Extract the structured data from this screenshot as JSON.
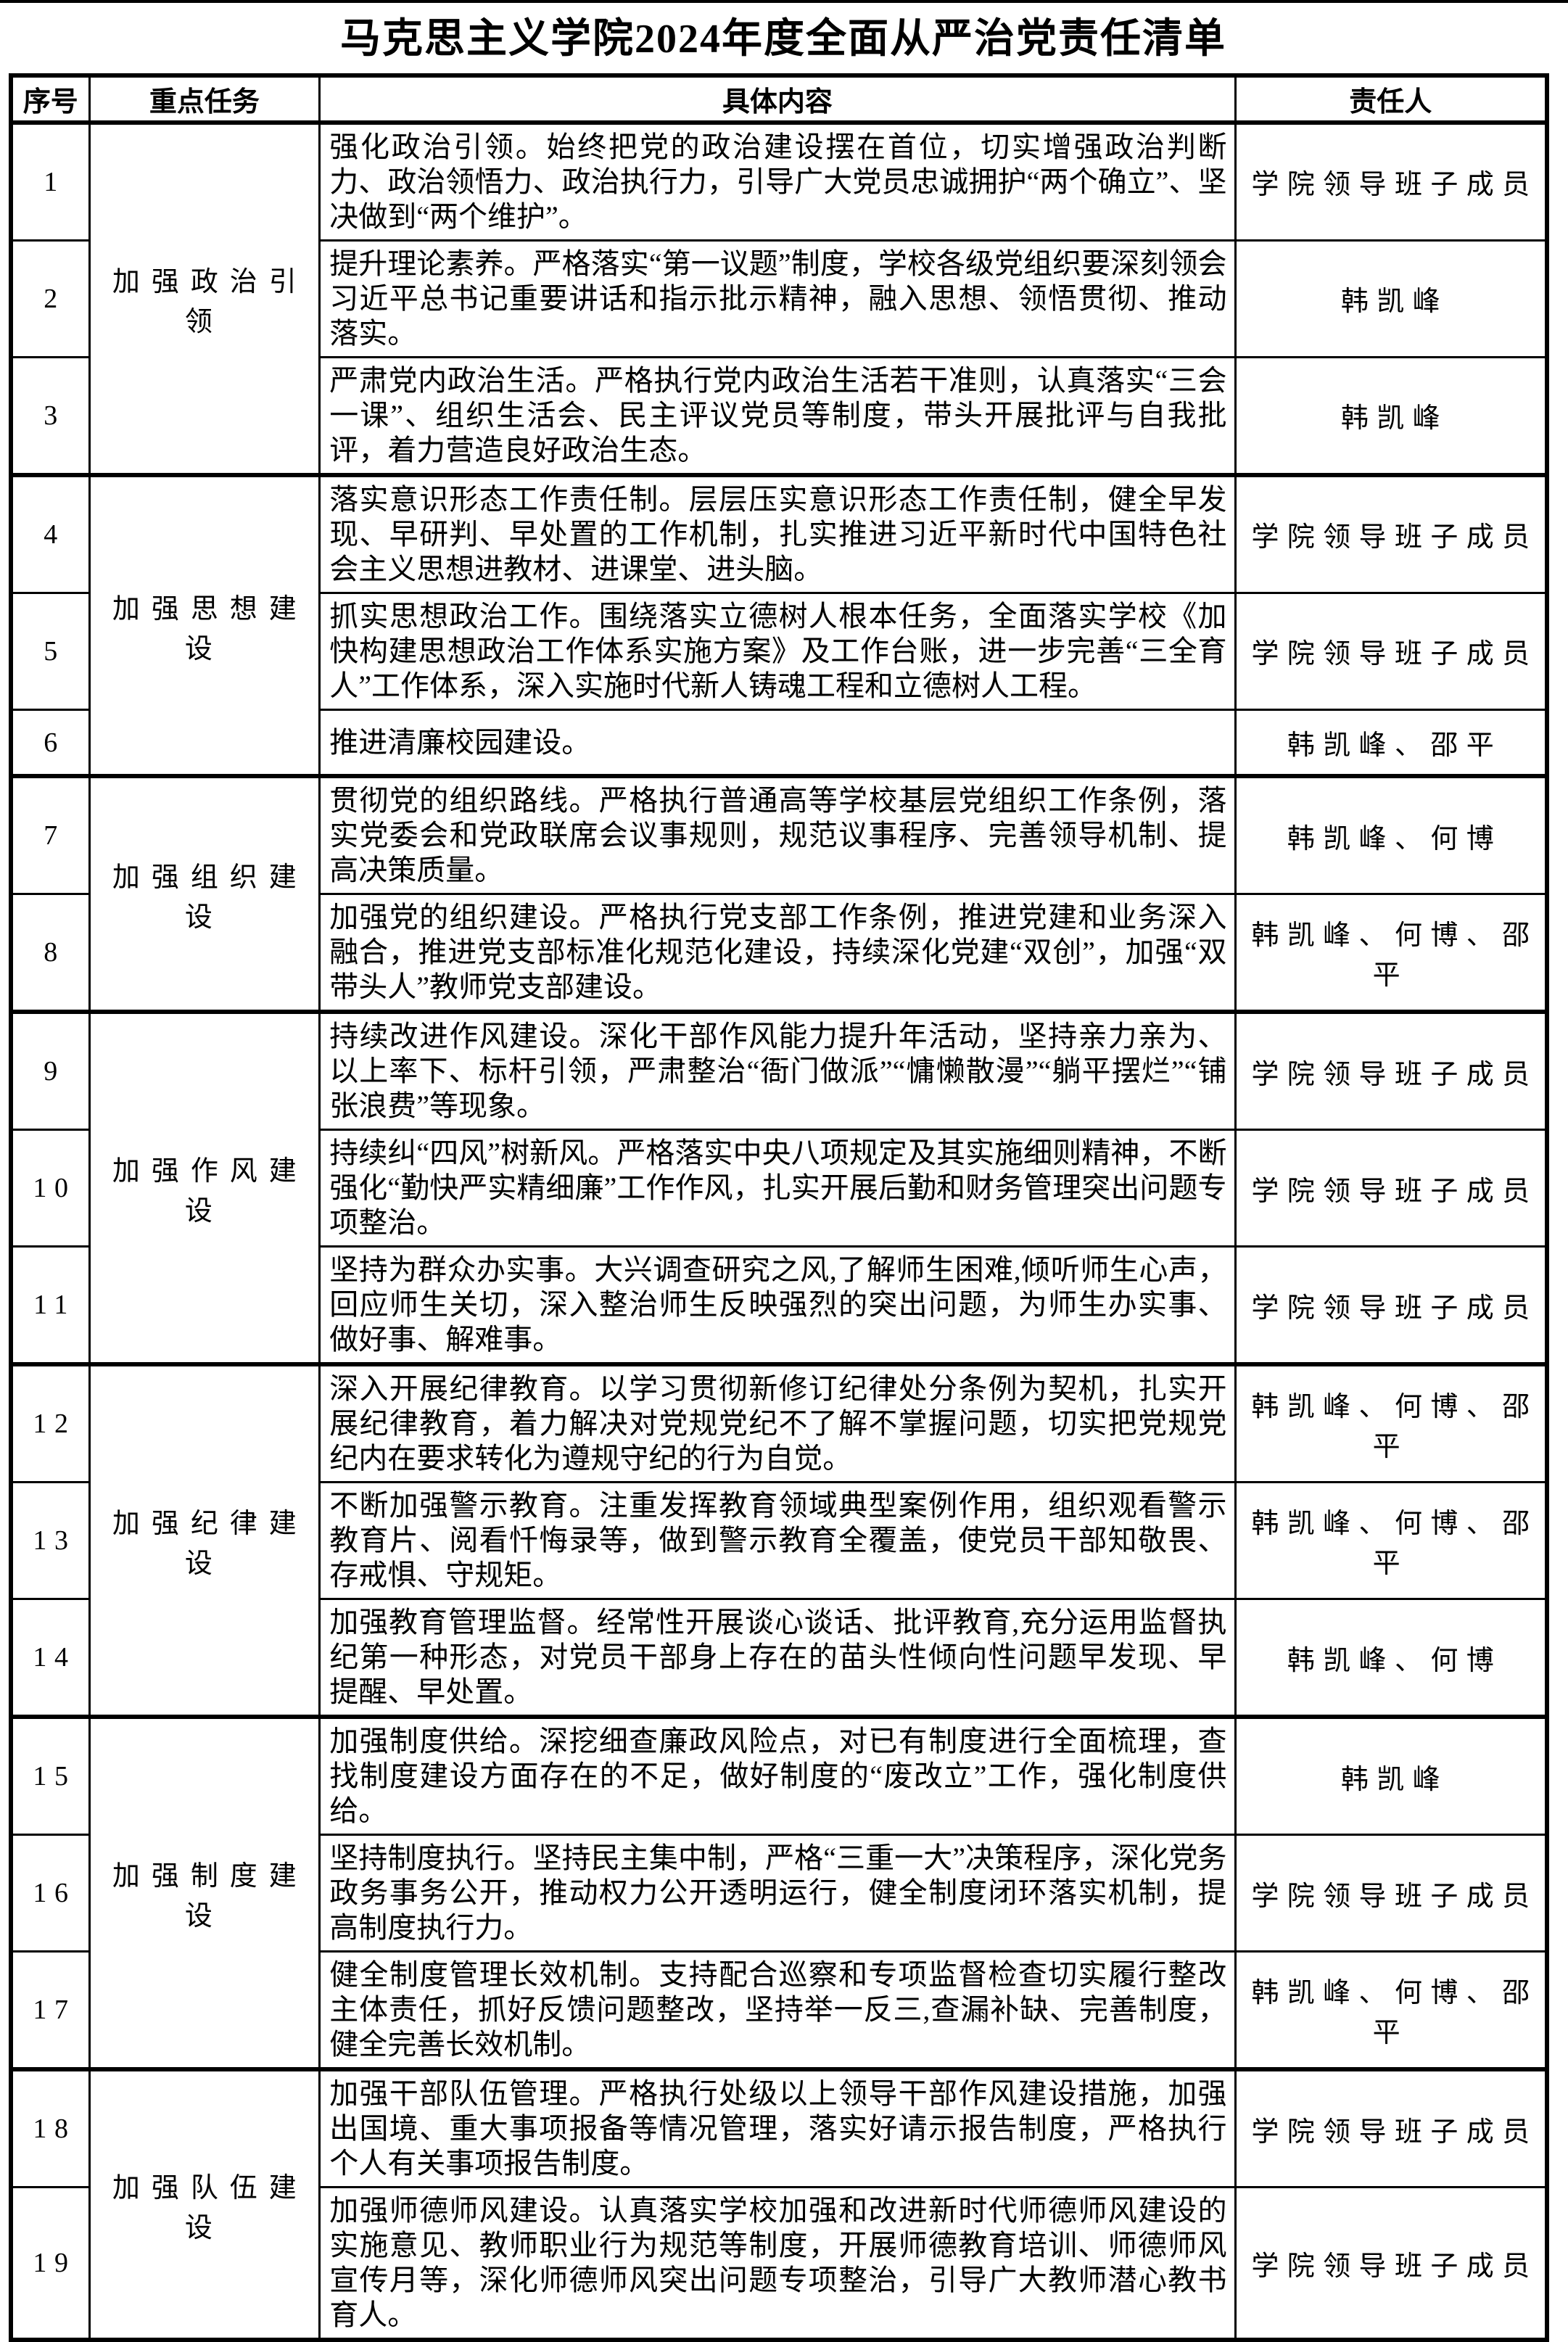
{
  "page": {
    "title": "马克思主义学院2024年度全面从严治党责任清单"
  },
  "table": {
    "headers": [
      "序号",
      "重点任务",
      "具体内容",
      "责任人"
    ],
    "groups": [
      {
        "task": "加强政治引领",
        "rows": [
          {
            "no": "1",
            "content": "强化政治引领。始终把党的政治建设摆在首位，切实增强政治判断力、政治领悟力、政治执行力，引导广大党员忠诚拥护“两个确立”、坚决做到“两个维护”。",
            "person": "学院领导班子成员"
          },
          {
            "no": "2",
            "content": "提升理论素养。严格落实“第一议题”制度，学校各级党组织要深刻领会习近平总书记重要讲话和指示批示精神，融入思想、领悟贯彻、推动落实。",
            "person": "韩凯峰"
          },
          {
            "no": "3",
            "content": "严肃党内政治生活。严格执行党内政治生活若干准则，认真落实“三会一课”、组织生活会、民主评议党员等制度，带头开展批评与自我批评，着力营造良好政治生态。",
            "person": "韩凯峰"
          }
        ]
      },
      {
        "task": "加强思想建设",
        "rows": [
          {
            "no": "4",
            "content": "落实意识形态工作责任制。层层压实意识形态工作责任制，健全早发现、早研判、早处置的工作机制，扎实推进习近平新时代中国特色社会主义思想进教材、进课堂、进头脑。",
            "person": "学院领导班子成员"
          },
          {
            "no": "5",
            "content": "抓实思想政治工作。围绕落实立德树人根本任务，全面落实学校《加快构建思想政治工作体系实施方案》及工作台账，进一步完善“三全育人”工作体系，深入实施时代新人铸魂工程和立德树人工程。",
            "person": "学院领导班子成员"
          },
          {
            "no": "6",
            "content": "推进清廉校园建设。",
            "person": "韩凯峰、邵平"
          }
        ]
      },
      {
        "task": "加强组织建设",
        "rows": [
          {
            "no": "7",
            "content": "贯彻党的组织路线。严格执行普通高等学校基层党组织工作条例，落实党委会和党政联席会议事规则，规范议事程序、完善领导机制、提高决策质量。",
            "person": "韩凯峰、何博"
          },
          {
            "no": "8",
            "content": "加强党的组织建设。严格执行党支部工作条例，推进党建和业务深入融合，推进党支部标准化规范化建设，持续深化党建“双创”，加强“双带头人”教师党支部建设。",
            "person": "韩凯峰、何博、邵平"
          }
        ]
      },
      {
        "task": "加强作风建设",
        "rows": [
          {
            "no": "9",
            "content": "持续改进作风建设。深化干部作风能力提升年活动，坚持亲力亲为、以上率下、标杆引领，严肃整治“衙门做派”“慵懒散漫”“躺平摆烂”“铺张浪费”等现象。",
            "person": "学院领导班子成员"
          },
          {
            "no": "10",
            "content": "持续纠“四风”树新风。严格落实中央八项规定及其实施细则精神，不断强化“勤快严实精细廉”工作作风，扎实开展后勤和财务管理突出问题专项整治。",
            "person": "学院领导班子成员"
          },
          {
            "no": "11",
            "content": "坚持为群众办实事。大兴调查研究之风,了解师生困难,倾听师生心声，回应师生关切，深入整治师生反映强烈的突出问题，为师生办实事、做好事、解难事。",
            "person": "学院领导班子成员"
          }
        ]
      },
      {
        "task": "加强纪律建设",
        "rows": [
          {
            "no": "12",
            "content": "深入开展纪律教育。以学习贯彻新修订纪律处分条例为契机，扎实开展纪律教育，着力解决对党规党纪不了解不掌握问题，切实把党规党纪内在要求转化为遵规守纪的行为自觉。",
            "person": "韩凯峰、何博、邵平"
          },
          {
            "no": "13",
            "content": "不断加强警示教育。注重发挥教育领域典型案例作用，组织观看警示教育片、阅看忏悔录等，做到警示教育全覆盖，使党员干部知敬畏、存戒惧、守规矩。",
            "person": "韩凯峰、何博、邵平"
          },
          {
            "no": "14",
            "content": "加强教育管理监督。经常性开展谈心谈话、批评教育,充分运用监督执纪第一种形态，对党员干部身上存在的苗头性倾向性问题早发现、早提醒、早处置。",
            "person": "韩凯峰、何博"
          }
        ]
      },
      {
        "task": "加强制度建设",
        "rows": [
          {
            "no": "15",
            "content": "加强制度供给。深挖细查廉政风险点，对已有制度进行全面梳理，查找制度建设方面存在的不足，做好制度的“废改立”工作，强化制度供给。",
            "person": "韩凯峰"
          },
          {
            "no": "16",
            "content": "坚持制度执行。坚持民主集中制，严格“三重一大”决策程序，深化党务政务事务公开，推动权力公开透明运行，健全制度闭环落实机制，提高制度执行力。",
            "person": "学院领导班子成员"
          },
          {
            "no": "17",
            "content": "健全制度管理长效机制。支持配合巡察和专项监督检查切实履行整改主体责任，抓好反馈问题整改，坚持举一反三,查漏补缺、完善制度，健全完善长效机制。",
            "person": "韩凯峰、何博、邵平"
          }
        ]
      },
      {
        "task": "加强队伍建设",
        "rows": [
          {
            "no": "18",
            "content": "加强干部队伍管理。严格执行处级以上领导干部作风建设措施，加强出国境、重大事项报备等情况管理，落实好请示报告制度，严格执行个人有关事项报告制度。",
            "person": "学院领导班子成员"
          },
          {
            "no": "19",
            "content": "加强师德师风建设。认真落实学校加强和改进新时代师德师风建设的实施意见、教师职业行为规范等制度，开展师德教育培训、师德师风宣传月等，深化师德师风突出问题专项整治，引导广大教师潜心教书育人。",
            "person": "学院领导班子成员"
          }
        ]
      }
    ]
  }
}
